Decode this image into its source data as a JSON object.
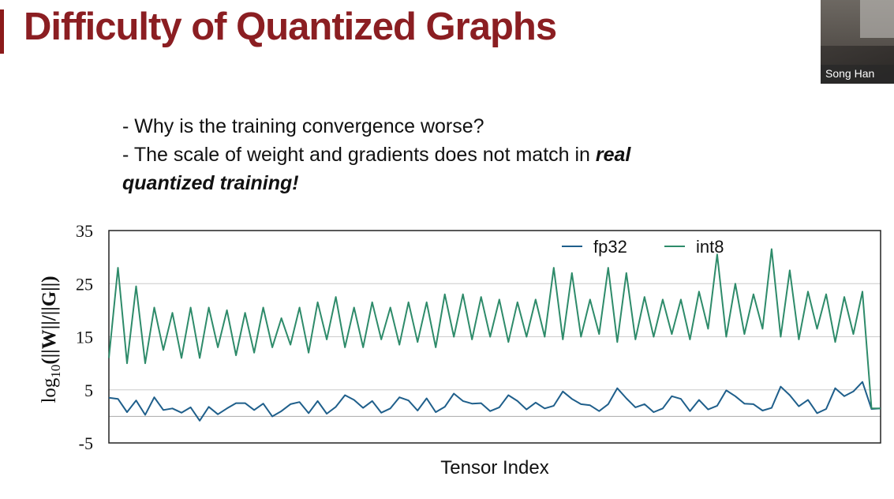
{
  "slide": {
    "title": "Difficulty of Quantized Graphs",
    "bullets": {
      "line1": "- Why is the training convergence worse?",
      "line2_plain": "- The scale of weight and gradients does not match in ",
      "line2_emph": "real",
      "line3_emph": "quantized training!"
    }
  },
  "video": {
    "name": "Song Han"
  },
  "colors": {
    "title": "#8b1e22",
    "fp32": "#1f5f8b",
    "int8": "#2e8b6a",
    "grid": "#cccccc"
  },
  "chart_data": {
    "type": "line",
    "title": "",
    "xlabel": "Tensor Index",
    "ylabel_prefix": "log",
    "ylabel_sub": "10",
    "ylabel_rest": "(||W||/||G||)",
    "ylim": [
      -5,
      35
    ],
    "yticks": [
      "35",
      "25",
      "15",
      "5",
      "-5"
    ],
    "ytick_values": [
      35,
      25,
      15,
      5,
      -5
    ],
    "grid": true,
    "legend_position": "top-right",
    "series": [
      {
        "name": "fp32",
        "values": [
          3.5,
          3.3,
          0.8,
          3.0,
          0.3,
          3.6,
          1.2,
          1.5,
          0.7,
          1.7,
          -0.8,
          1.8,
          0.4,
          1.5,
          2.5,
          2.5,
          1.2,
          2.4,
          0.0,
          1.0,
          2.3,
          2.7,
          0.6,
          2.9,
          0.5,
          1.8,
          4.0,
          3.1,
          1.6,
          2.9,
          0.7,
          1.5,
          3.6,
          3.0,
          1.1,
          3.4,
          0.8,
          1.8,
          4.3,
          2.9,
          2.4,
          2.5,
          1.0,
          1.7,
          4.0,
          2.9,
          1.3,
          2.6,
          1.5,
          2.0,
          4.7,
          3.3,
          2.3,
          2.1,
          1.0,
          2.3,
          5.3,
          3.4,
          1.7,
          2.3,
          0.8,
          1.5,
          3.8,
          3.3,
          1.0,
          3.1,
          1.3,
          2.0,
          4.9,
          3.8,
          2.4,
          2.3,
          1.1,
          1.6,
          5.6,
          4.0,
          1.9,
          3.1,
          0.6,
          1.4,
          5.3,
          3.8,
          4.7,
          6.5,
          1.4,
          1.5
        ]
      },
      {
        "name": "int8",
        "values": [
          11,
          28,
          10,
          24.5,
          10,
          20.5,
          12.5,
          19.5,
          11,
          20.5,
          11,
          20.5,
          13,
          20,
          11.5,
          19.5,
          12,
          20.5,
          13,
          18.5,
          13.5,
          20.5,
          12,
          21.5,
          14.5,
          22.5,
          13,
          20.5,
          13,
          21.5,
          14.5,
          20.5,
          13.5,
          21.5,
          14,
          21.5,
          13,
          23,
          15,
          23,
          14.5,
          22.5,
          15,
          22,
          14,
          21.5,
          15,
          22,
          15,
          28,
          14.5,
          27,
          15,
          22,
          15.5,
          28,
          14,
          27,
          14.5,
          22.5,
          15,
          22,
          15.5,
          22,
          14.5,
          23.5,
          16.5,
          30.5,
          15,
          25,
          15.5,
          23,
          16.5,
          31.5,
          15,
          27.5,
          14.5,
          23.5,
          16.5,
          23,
          14,
          22.5,
          15.5,
          23.5,
          1.5,
          1.5
        ]
      }
    ]
  }
}
